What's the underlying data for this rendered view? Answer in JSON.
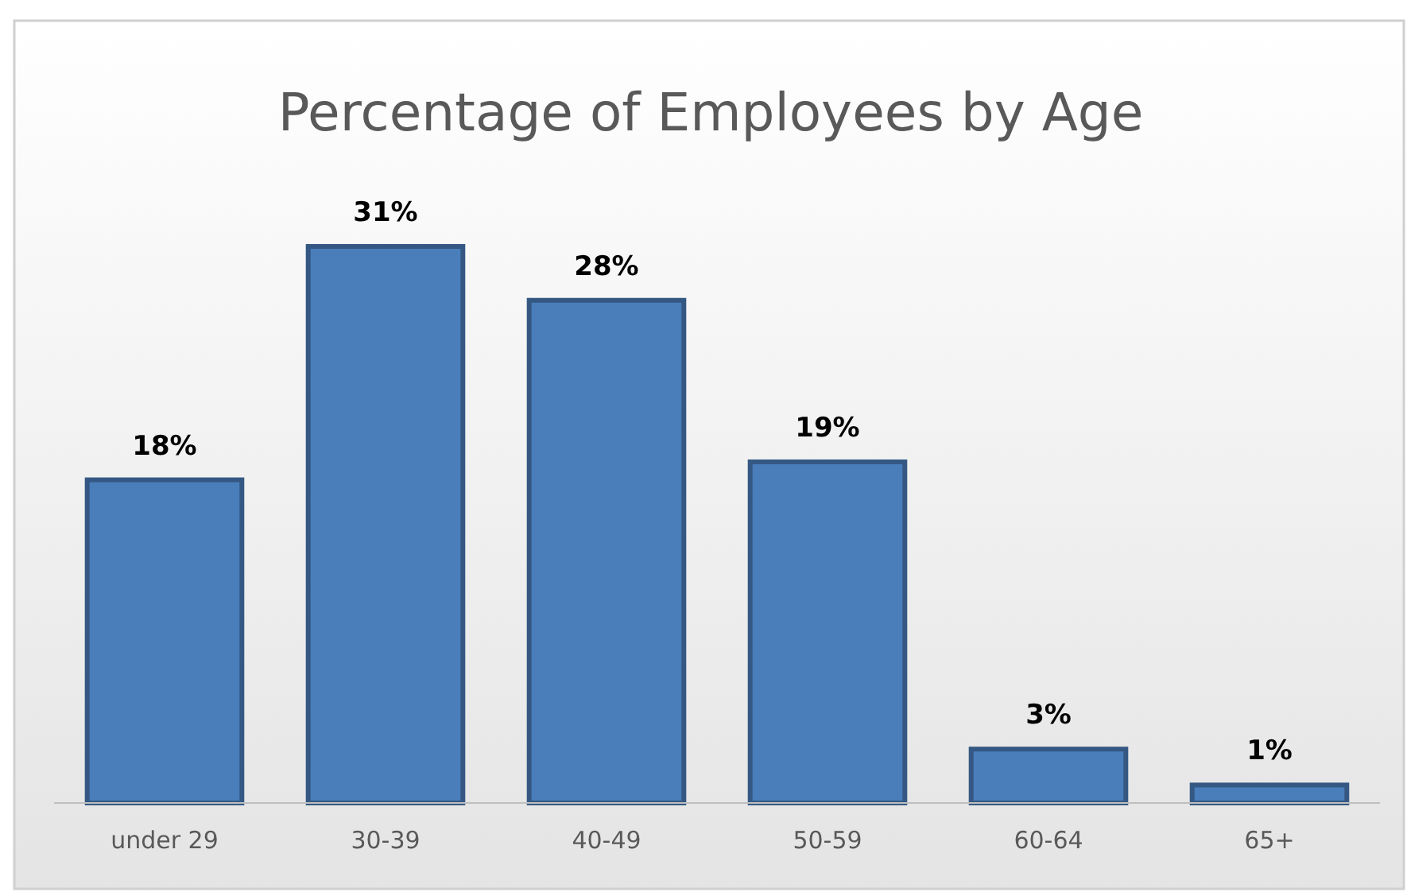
{
  "chart_data": {
    "type": "bar",
    "title": "Percentage of Employees by Age",
    "categories": [
      "under 29",
      "30-39",
      "40-49",
      "50-59",
      "60-64",
      "65+"
    ],
    "values": [
      18,
      31,
      28,
      19,
      3,
      1
    ],
    "value_labels": [
      "18%",
      "31%",
      "28%",
      "19%",
      "3%",
      "1%"
    ],
    "color": "#4a7ebb",
    "grid": false
  }
}
